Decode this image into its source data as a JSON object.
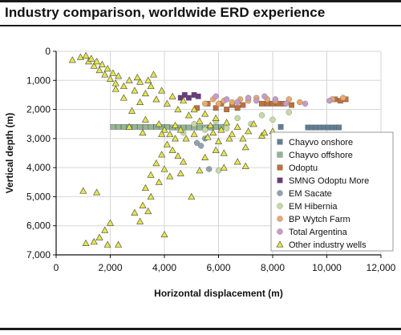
{
  "page": {
    "title": "Industry comparison, worldwide ERD experience"
  },
  "chart_data": {
    "type": "scatter",
    "title": "Industry comparison, worldwide ERD experience",
    "xlabel": "Horizontal displacement (m)",
    "ylabel": "Vertical depth (m)",
    "xlim": [
      0,
      12000
    ],
    "ylim": [
      0,
      7000
    ],
    "y_inverted": true,
    "x_ticks": [
      "0",
      "2,000",
      "4,000",
      "6,000",
      "8,000",
      "10,000",
      "12,000"
    ],
    "y_ticks": [
      "0",
      "1,000",
      "2,000",
      "3,000",
      "4,000",
      "5,000",
      "6,000",
      "7,000"
    ],
    "grid": true,
    "legend_position": "right",
    "series": [
      {
        "name": "Chayvo onshore",
        "marker": "square",
        "color": "#5f7f95",
        "points": [
          [
            8300,
            2600
          ],
          [
            9300,
            2620
          ],
          [
            9450,
            2620
          ],
          [
            9600,
            2620
          ],
          [
            9750,
            2620
          ],
          [
            9900,
            2620
          ],
          [
            10050,
            2620
          ],
          [
            10200,
            2620
          ],
          [
            10350,
            2620
          ],
          [
            10450,
            2620
          ]
        ]
      },
      {
        "name": "Chayvo offshore",
        "marker": "square",
        "color": "#93b693",
        "points": [
          [
            2100,
            2600
          ],
          [
            2300,
            2600
          ],
          [
            2500,
            2600
          ],
          [
            2700,
            2600
          ],
          [
            2900,
            2600
          ],
          [
            3100,
            2600
          ],
          [
            3300,
            2600
          ],
          [
            3500,
            2600
          ],
          [
            3700,
            2600
          ],
          [
            3900,
            2600
          ],
          [
            4100,
            2600
          ],
          [
            4300,
            2620
          ],
          [
            4500,
            2620
          ],
          [
            4700,
            2620
          ],
          [
            4900,
            2620
          ],
          [
            5100,
            2620
          ],
          [
            5300,
            2620
          ],
          [
            5500,
            2620
          ],
          [
            5700,
            2620
          ],
          [
            5900,
            2600
          ],
          [
            6100,
            2600
          ]
        ]
      },
      {
        "name": "Odoptu",
        "marker": "square",
        "color": "#c0703b",
        "points": [
          [
            5200,
            1950
          ],
          [
            5600,
            1800
          ],
          [
            5900,
            1950
          ],
          [
            6100,
            1800
          ],
          [
            6300,
            2000
          ],
          [
            6500,
            1850
          ],
          [
            6700,
            1950
          ],
          [
            6900,
            1850
          ],
          [
            7600,
            1800
          ],
          [
            7800,
            1800
          ],
          [
            8000,
            1800
          ],
          [
            8200,
            1800
          ],
          [
            8400,
            1800
          ],
          [
            8700,
            1850
          ],
          [
            10300,
            1650
          ],
          [
            10500,
            1700
          ],
          [
            10700,
            1650
          ]
        ]
      },
      {
        "name": "SMNG Odoptu More",
        "marker": "square",
        "color": "#6b3a7d",
        "points": [
          [
            4600,
            1600
          ],
          [
            4750,
            1500
          ],
          [
            4900,
            1600
          ],
          [
            5100,
            1500
          ],
          [
            5250,
            1550
          ]
        ]
      },
      {
        "name": "EM Sacate",
        "marker": "circle",
        "color": "#8fa3ad",
        "points": [
          [
            5200,
            3150
          ],
          [
            5350,
            3250
          ],
          [
            5500,
            3000
          ],
          [
            5650,
            4050
          ]
        ]
      },
      {
        "name": "EM Hibernia",
        "marker": "circle",
        "color": "#c5dba3",
        "points": [
          [
            4700,
            2800
          ],
          [
            5100,
            2500
          ],
          [
            5500,
            2700
          ],
          [
            5900,
            2400
          ],
          [
            6300,
            2650
          ],
          [
            6700,
            2300
          ],
          [
            7200,
            2500
          ],
          [
            7600,
            2200
          ],
          [
            8000,
            2350
          ],
          [
            8600,
            2100
          ],
          [
            6000,
            4100
          ]
        ]
      },
      {
        "name": "BP Wytch Farm",
        "marker": "circle",
        "color": "#e9a96c",
        "points": [
          [
            5500,
            1800
          ],
          [
            5800,
            1650
          ],
          [
            6000,
            1800
          ],
          [
            6200,
            1700
          ],
          [
            6500,
            1750
          ],
          [
            6800,
            1650
          ],
          [
            7100,
            1700
          ],
          [
            7400,
            1600
          ],
          [
            7800,
            1650
          ],
          [
            8100,
            1700
          ],
          [
            8600,
            1650
          ],
          [
            9000,
            1750
          ],
          [
            10200,
            1650
          ],
          [
            10600,
            1600
          ]
        ]
      },
      {
        "name": "Total Argentina",
        "marker": "circle",
        "color": "#c79bc9",
        "points": [
          [
            5900,
            1550
          ],
          [
            6300,
            1650
          ],
          [
            6700,
            1750
          ],
          [
            7100,
            1600
          ],
          [
            7400,
            1700
          ],
          [
            7700,
            1550
          ],
          [
            8100,
            1650
          ],
          [
            8500,
            1800
          ],
          [
            9200,
            1800
          ],
          [
            10100,
            1700
          ]
        ]
      },
      {
        "name": "Other industry wells",
        "marker": "triangle",
        "color": "#e5e64a",
        "points": [
          [
            600,
            300
          ],
          [
            900,
            200
          ],
          [
            1100,
            150
          ],
          [
            1200,
            350
          ],
          [
            1300,
            250
          ],
          [
            1400,
            500
          ],
          [
            1500,
            350
          ],
          [
            1600,
            650
          ],
          [
            1700,
            450
          ],
          [
            1800,
            800
          ],
          [
            1900,
            600
          ],
          [
            2000,
            950
          ],
          [
            2100,
            750
          ],
          [
            2200,
            1100
          ],
          [
            2300,
            850
          ],
          [
            2500,
            1200
          ],
          [
            2700,
            1000
          ],
          [
            2900,
            1350
          ],
          [
            3100,
            1050
          ],
          [
            3300,
            1450
          ],
          [
            3500,
            1200
          ],
          [
            3700,
            1650
          ],
          [
            3900,
            1350
          ],
          [
            4100,
            1800
          ],
          [
            4300,
            1550
          ],
          [
            4500,
            2000
          ],
          [
            4700,
            1700
          ],
          [
            4900,
            2200
          ],
          [
            5100,
            2000
          ],
          [
            5300,
            2400
          ],
          [
            5500,
            2150
          ],
          [
            5700,
            2550
          ],
          [
            5900,
            2300
          ],
          [
            6100,
            2700
          ],
          [
            6300,
            2450
          ],
          [
            6500,
            2850
          ],
          [
            6700,
            2600
          ],
          [
            6900,
            3000
          ],
          [
            7100,
            2750
          ],
          [
            7300,
            2500
          ],
          [
            7600,
            2900
          ],
          [
            8000,
            2750
          ],
          [
            3000,
            900
          ],
          [
            3400,
            1000
          ],
          [
            3600,
            800
          ],
          [
            3100,
            1750
          ],
          [
            2800,
            2050
          ],
          [
            3300,
            2350
          ],
          [
            3800,
            2500
          ],
          [
            4000,
            2700
          ],
          [
            4200,
            2850
          ],
          [
            4400,
            3000
          ],
          [
            4100,
            3200
          ],
          [
            4300,
            3400
          ],
          [
            4500,
            3600
          ],
          [
            4700,
            3800
          ],
          [
            3900,
            3550
          ],
          [
            3700,
            3850
          ],
          [
            4000,
            4050
          ],
          [
            4200,
            4300
          ],
          [
            3500,
            4250
          ],
          [
            3800,
            4500
          ],
          [
            3300,
            4700
          ],
          [
            3500,
            5000
          ],
          [
            3200,
            5300
          ],
          [
            3400,
            5500
          ],
          [
            2900,
            5550
          ],
          [
            3100,
            5850
          ],
          [
            4000,
            6300
          ],
          [
            2000,
            5900
          ],
          [
            1800,
            6150
          ],
          [
            1600,
            6400
          ],
          [
            1900,
            6650
          ],
          [
            2300,
            6650
          ],
          [
            1100,
            6600
          ],
          [
            1400,
            6550
          ],
          [
            1000,
            4800
          ],
          [
            1500,
            4850
          ],
          [
            5900,
            3400
          ],
          [
            6200,
            3500
          ],
          [
            6700,
            3800
          ],
          [
            7000,
            3950
          ],
          [
            5500,
            3650
          ],
          [
            4800,
            3000
          ],
          [
            5100,
            2850
          ],
          [
            5600,
            2950
          ],
          [
            6000,
            3100
          ],
          [
            7700,
            2800
          ],
          [
            5300,
            4100
          ],
          [
            4600,
            4200
          ],
          [
            6200,
            4000
          ],
          [
            5000,
            5000
          ],
          [
            4400,
            2550
          ],
          [
            3900,
            2850
          ],
          [
            4600,
            2700
          ],
          [
            5800,
            2800
          ],
          [
            6400,
            3000
          ],
          [
            7000,
            3300
          ],
          [
            2700,
            2600
          ],
          [
            3200,
            2800
          ],
          [
            2500,
            1600
          ],
          [
            2200,
            1300
          ]
        ]
      }
    ]
  }
}
